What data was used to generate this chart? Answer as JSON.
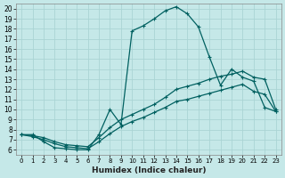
{
  "xlabel": "Humidex (Indice chaleur)",
  "xlim": [
    -0.5,
    23.5
  ],
  "ylim": [
    5.5,
    20.5
  ],
  "xticks": [
    0,
    1,
    2,
    3,
    4,
    5,
    6,
    7,
    8,
    9,
    10,
    11,
    12,
    13,
    14,
    15,
    16,
    17,
    18,
    19,
    20,
    21,
    22,
    23
  ],
  "yticks": [
    6,
    7,
    8,
    9,
    10,
    11,
    12,
    13,
    14,
    15,
    16,
    17,
    18,
    19,
    20
  ],
  "bg_color": "#c5e8e8",
  "grid_color": "#aad4d4",
  "line_color": "#006060",
  "line1_x": [
    0,
    1,
    2,
    3,
    4,
    5,
    6,
    7,
    8,
    9,
    10,
    11,
    12,
    13,
    14,
    15,
    16,
    17,
    18,
    19,
    20,
    21,
    22,
    23
  ],
  "line1_y": [
    7.5,
    7.5,
    6.8,
    6.2,
    6.1,
    6.0,
    6.0,
    7.5,
    10.0,
    8.5,
    17.8,
    18.3,
    19.0,
    19.8,
    20.2,
    19.5,
    18.2,
    15.2,
    12.4,
    14.0,
    13.2,
    12.8,
    10.2,
    9.8
  ],
  "line2_x": [
    0,
    1,
    2,
    3,
    4,
    5,
    6,
    7,
    8,
    9,
    10,
    11,
    12,
    13,
    14,
    15,
    16,
    17,
    18,
    19,
    20,
    21,
    22,
    23
  ],
  "line2_y": [
    7.5,
    7.4,
    7.2,
    6.8,
    6.5,
    6.4,
    6.3,
    7.2,
    8.2,
    9.0,
    9.5,
    10.0,
    10.5,
    11.2,
    12.0,
    12.3,
    12.6,
    13.0,
    13.3,
    13.5,
    13.8,
    13.2,
    13.0,
    10.0
  ],
  "line3_x": [
    0,
    1,
    2,
    3,
    4,
    5,
    6,
    7,
    8,
    9,
    10,
    11,
    12,
    13,
    14,
    15,
    16,
    17,
    18,
    19,
    20,
    21,
    22,
    23
  ],
  "line3_y": [
    7.5,
    7.3,
    7.0,
    6.6,
    6.3,
    6.2,
    6.1,
    6.8,
    7.6,
    8.3,
    8.8,
    9.2,
    9.7,
    10.2,
    10.8,
    11.0,
    11.3,
    11.6,
    11.9,
    12.2,
    12.5,
    11.8,
    11.5,
    9.8
  ]
}
